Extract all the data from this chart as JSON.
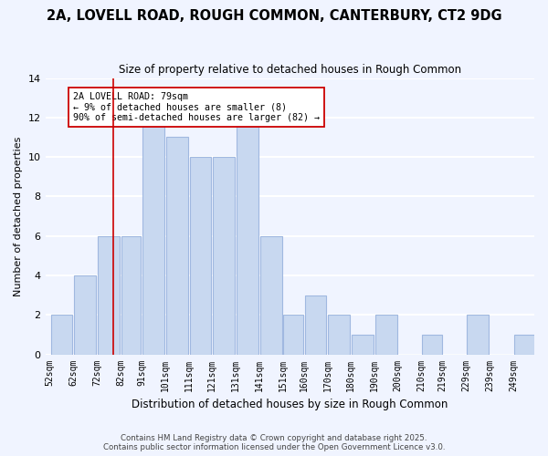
{
  "title": "2A, LOVELL ROAD, ROUGH COMMON, CANTERBURY, CT2 9DG",
  "subtitle": "Size of property relative to detached houses in Rough Common",
  "xlabel": "Distribution of detached houses by size in Rough Common",
  "ylabel": "Number of detached properties",
  "bar_color": "#c8d8f0",
  "bar_edge_color": "#a0b8e0",
  "background_color": "#f0f4ff",
  "grid_color": "#ffffff",
  "bin_edges": [
    52,
    62,
    72,
    82,
    91,
    101,
    111,
    121,
    131,
    141,
    151,
    160,
    170,
    180,
    190,
    200,
    210,
    219,
    229,
    239,
    249,
    259
  ],
  "counts": [
    2,
    4,
    6,
    6,
    12,
    11,
    10,
    10,
    12,
    6,
    2,
    3,
    2,
    1,
    2,
    0,
    1,
    0,
    2,
    0,
    1
  ],
  "tick_labels": [
    "52sqm",
    "62sqm",
    "72sqm",
    "82sqm",
    "91sqm",
    "101sqm",
    "111sqm",
    "121sqm",
    "131sqm",
    "141sqm",
    "151sqm",
    "160sqm",
    "170sqm",
    "180sqm",
    "190sqm",
    "200sqm",
    "210sqm",
    "219sqm",
    "229sqm",
    "239sqm",
    "249sqm"
  ],
  "vline_x": 79,
  "vline_color": "#cc0000",
  "annotation_title": "2A LOVELL ROAD: 79sqm",
  "annotation_line1": "← 9% of detached houses are smaller (8)",
  "annotation_line2": "90% of semi-detached houses are larger (82) →",
  "annotation_box_color": "#ffffff",
  "annotation_box_edge": "#cc0000",
  "ylim": [
    0,
    14
  ],
  "yticks": [
    0,
    2,
    4,
    6,
    8,
    10,
    12,
    14
  ],
  "footer1": "Contains HM Land Registry data © Crown copyright and database right 2025.",
  "footer2": "Contains public sector information licensed under the Open Government Licence v3.0."
}
